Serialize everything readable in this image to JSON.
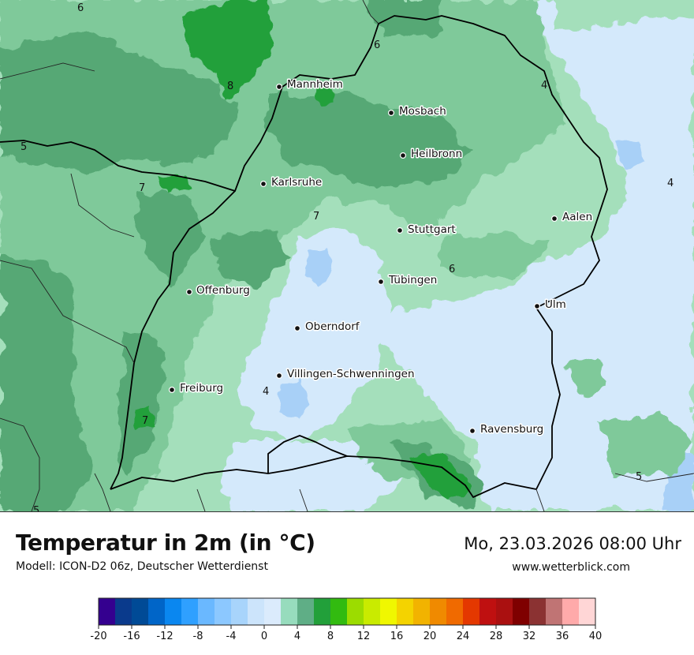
{
  "header": {
    "title": "Temperatur in 2m (in °C)",
    "model": "Modell: ICON-D2 06z, Deutscher Wetterdienst",
    "datetime": "Mo, 23.03.2026 08:00 Uhr",
    "website": "www.wetterblick.com"
  },
  "map": {
    "cities": [
      {
        "name": "Mannheim"
      },
      {
        "name": "Mosbach"
      },
      {
        "name": "Heilbronn"
      },
      {
        "name": "Karlsruhe"
      },
      {
        "name": "Stuttgart"
      },
      {
        "name": "Aalen"
      },
      {
        "name": "Tübingen"
      },
      {
        "name": "Offenburg"
      },
      {
        "name": "Ulm"
      },
      {
        "name": "Oberndorf"
      },
      {
        "name": "Villingen-Schwenningen"
      },
      {
        "name": "Freiburg"
      },
      {
        "name": "Ravensburg"
      }
    ],
    "contour_labels": [
      "6",
      "6",
      "8",
      "4",
      "5",
      "7",
      "4",
      "7",
      "6",
      "4",
      "7",
      "5",
      "5"
    ],
    "colors": {
      "ge6": "#56a874",
      "ge4": "#7fc99a",
      "ge2": "#a4dfbb",
      "ge0": "#d4e9fb",
      "lt0": "#a8d0f7",
      "lt_minus2": "#80b8f2",
      "ge8": "#22a03a"
    }
  },
  "legend": {
    "ticks": [
      "-20",
      "-16",
      "-12",
      "-8",
      "-4",
      "0",
      "4",
      "8",
      "12",
      "16",
      "20",
      "24",
      "28",
      "32",
      "36",
      "40"
    ],
    "colors": [
      "#34008f",
      "#0a3a8c",
      "#004a96",
      "#0065c8",
      "#0a87f0",
      "#2fa0ff",
      "#6ab8ff",
      "#8cc8ff",
      "#a8d4fb",
      "#cce4fb",
      "#dbebfc",
      "#97dcbd",
      "#5fae86",
      "#22a03a",
      "#32bb10",
      "#9cdc00",
      "#c9eb00",
      "#f0f700",
      "#f4d300",
      "#f2b300",
      "#f08a00",
      "#f06a00",
      "#e43800",
      "#bf1010",
      "#aa1010",
      "#7f0000",
      "#8b3232",
      "#c07474",
      "#ffaaaa",
      "#ffd6d6"
    ]
  }
}
